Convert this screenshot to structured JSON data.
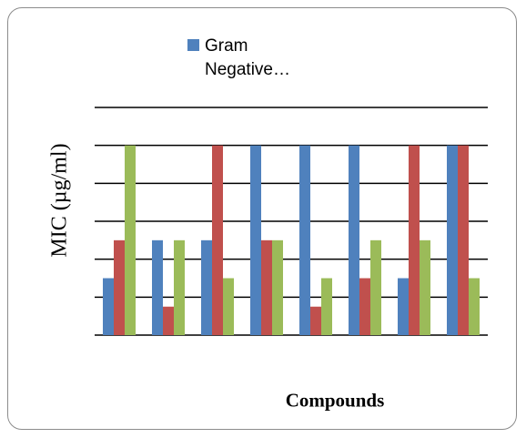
{
  "chart_data": {
    "type": "bar",
    "title": "",
    "xlabel": "Compounds",
    "ylabel": "MIC (µg/ml)",
    "categories": [
      "",
      "",
      "",
      "",
      "",
      "",
      "",
      ""
    ],
    "ylim": [
      0,
      6
    ],
    "grid": true,
    "legend_position": "top",
    "series": [
      {
        "name": "Gram Negative…",
        "color": "#4f81bd",
        "values": [
          1.5,
          2.5,
          2.5,
          5.0,
          5.0,
          5.0,
          1.5,
          5.0
        ]
      },
      {
        "name": "",
        "color": "#c0504d",
        "values": [
          2.5,
          0.75,
          5.0,
          2.5,
          0.75,
          1.5,
          5.0,
          5.0
        ]
      },
      {
        "name": "",
        "color": "#9bbb59",
        "values": [
          5.0,
          2.5,
          1.5,
          2.5,
          1.5,
          2.5,
          2.5,
          1.5
        ]
      }
    ]
  },
  "legend": {
    "line1": "Gram",
    "line2": "Negative…"
  }
}
